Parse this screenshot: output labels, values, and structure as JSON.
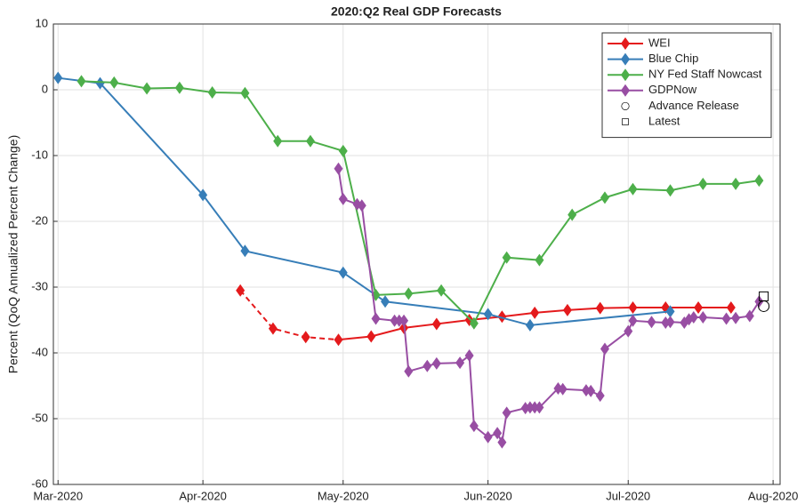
{
  "chart_data": {
    "type": "line",
    "title": "2020:Q2 Real GDP Forecasts",
    "ylabel": "Percent (QoQ Annualized Percent Change)",
    "xlim": [
      60,
      215.5
    ],
    "ylim": [
      -60,
      10
    ],
    "xticks": [
      {
        "value": 61,
        "label": "Mar-2020"
      },
      {
        "value": 92,
        "label": "Apr-2020"
      },
      {
        "value": 122,
        "label": "May-2020"
      },
      {
        "value": 153,
        "label": "Jun-2020"
      },
      {
        "value": 183,
        "label": "Jul-2020"
      },
      {
        "value": 214,
        "label": "Aug-2020"
      }
    ],
    "yticks": [
      10,
      0,
      -10,
      -20,
      -30,
      -40,
      -50,
      -60
    ],
    "grid": true,
    "legend": "upper right",
    "series": [
      {
        "name": "WEI",
        "color": "#e41a1c",
        "marker": "diamond",
        "line": true,
        "dashed_through": 121,
        "x": [
          100,
          107,
          114,
          121,
          128,
          135,
          142,
          149,
          156,
          163,
          170,
          177,
          184,
          191,
          198,
          205
        ],
        "values": [
          -30.5,
          -36.3,
          -37.6,
          -38,
          -37.5,
          -36.2,
          -35.6,
          -35,
          -34.5,
          -33.9,
          -33.5,
          -33.2,
          -33.1,
          -33.1,
          -33.1,
          -33.1
        ]
      },
      {
        "name": "Blue Chip",
        "color": "#377eb8",
        "marker": "diamond",
        "line": true,
        "x": [
          61,
          70,
          92,
          101,
          122,
          131,
          153,
          162,
          192
        ],
        "values": [
          1.8,
          1,
          -16,
          -24.5,
          -27.8,
          -32.2,
          -34.1,
          -35.8,
          -33.7
        ]
      },
      {
        "name": "NY Fed Staff Nowcast",
        "color": "#4daf4a",
        "marker": "diamond",
        "line": true,
        "x": [
          66,
          73,
          80,
          87,
          94,
          101,
          108,
          115,
          122,
          129,
          136,
          143,
          150,
          157,
          164,
          171,
          178,
          184,
          192,
          199,
          206,
          211
        ],
        "values": [
          1.3,
          1.1,
          0.2,
          0.3,
          -0.4,
          -0.5,
          -7.8,
          -7.8,
          -9.3,
          -31.2,
          -31,
          -30.5,
          -35.5,
          -25.5,
          -25.9,
          -19,
          -16.4,
          -15.1,
          -15.3,
          -14.3,
          -14.3,
          -13.8
        ]
      },
      {
        "name": "GDPNow",
        "color": "#984ea3",
        "marker": "diamond",
        "line": true,
        "x": [
          121,
          122,
          125,
          126,
          129,
          133,
          134,
          135,
          136,
          140,
          142,
          147,
          149,
          150,
          153,
          155,
          156,
          157,
          161,
          162,
          163,
          164,
          168,
          169,
          174,
          175,
          177,
          178,
          183,
          184,
          188,
          191,
          192,
          195,
          196,
          197,
          199,
          204,
          206,
          209,
          211
        ],
        "values": [
          -12,
          -16.6,
          -17.4,
          -17.6,
          -34.8,
          -35.1,
          -35.1,
          -35.1,
          -42.8,
          -42,
          -41.6,
          -41.5,
          -40.4,
          -51.1,
          -52.8,
          -52.2,
          -53.6,
          -49.1,
          -48.4,
          -48.3,
          -48.3,
          -48.3,
          -45.4,
          -45.5,
          -45.7,
          -45.8,
          -46.5,
          -39.4,
          -36.7,
          -35.1,
          -35.3,
          -35.4,
          -35.3,
          -35.4,
          -34.9,
          -34.6,
          -34.6,
          -34.8,
          -34.7,
          -34.4,
          -32.2
        ]
      },
      {
        "name": "Advance Release",
        "color": "#000000",
        "marker": "circle",
        "line": false,
        "x": [
          212
        ],
        "values": [
          -32.9
        ]
      },
      {
        "name": "Latest",
        "color": "#000000",
        "marker": "square",
        "line": false,
        "x": [
          212
        ],
        "values": [
          -31.4
        ]
      }
    ]
  }
}
